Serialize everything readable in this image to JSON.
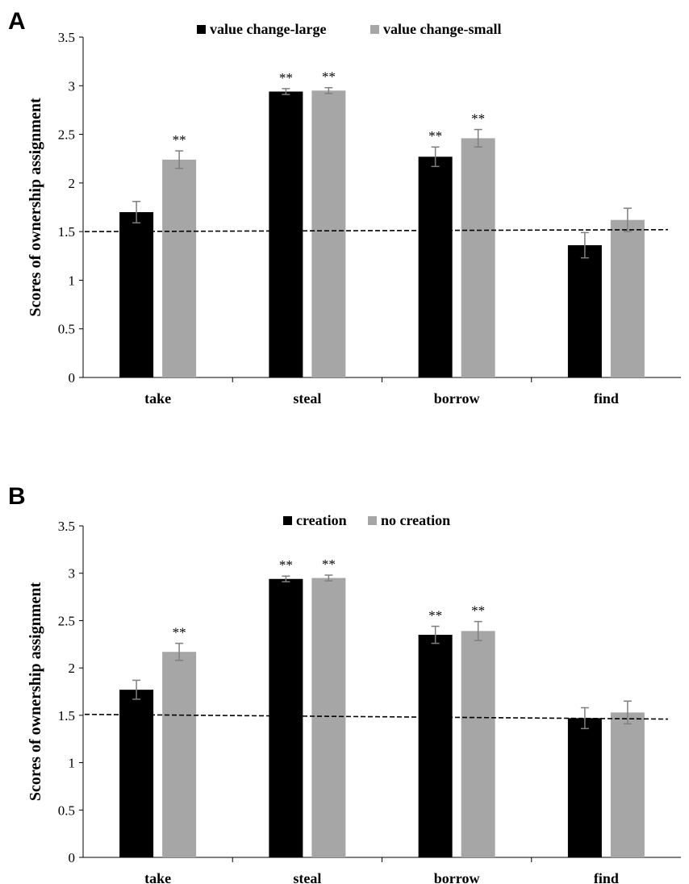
{
  "chart_data": [
    {
      "type": "bar",
      "panel": "A",
      "ylabel": "Scores of ownership assignment",
      "xlabel": "",
      "ylim": [
        0,
        3.5
      ],
      "yticks": [
        "0",
        "0.5",
        "1",
        "1.5",
        "2",
        "2.5",
        "3",
        "3.5"
      ],
      "categories": [
        "take",
        "steal",
        "borrow",
        "find"
      ],
      "legend_position": "top-center",
      "series": [
        {
          "name": "value change-large",
          "color": "#000000",
          "values": [
            1.7,
            2.94,
            2.27,
            1.36
          ],
          "errors": [
            0.11,
            0.03,
            0.1,
            0.13
          ],
          "significance": [
            "",
            "**",
            "**",
            ""
          ]
        },
        {
          "name": "value change-small",
          "color": "#a6a6a6",
          "values": [
            2.24,
            2.95,
            2.46,
            1.62
          ],
          "errors": [
            0.09,
            0.03,
            0.09,
            0.12
          ],
          "significance": [
            "**",
            "**",
            "**",
            ""
          ]
        }
      ],
      "reference_line": {
        "style": "dashed",
        "y_start": 1.5,
        "y_end": 1.52
      }
    },
    {
      "type": "bar",
      "panel": "B",
      "ylabel": "Scores of ownership assignment",
      "xlabel": "",
      "ylim": [
        0,
        3.5
      ],
      "yticks": [
        "0",
        "0.5",
        "1",
        "1.5",
        "2",
        "2.5",
        "3",
        "3.5"
      ],
      "categories": [
        "take",
        "steal",
        "borrow",
        "find"
      ],
      "legend_position": "top-center",
      "series": [
        {
          "name": "creation",
          "color": "#000000",
          "values": [
            1.77,
            2.94,
            2.35,
            1.47
          ],
          "errors": [
            0.1,
            0.03,
            0.09,
            0.11
          ],
          "significance": [
            "",
            "**",
            "**",
            ""
          ]
        },
        {
          "name": "no creation",
          "color": "#a6a6a6",
          "values": [
            2.17,
            2.95,
            2.39,
            1.53
          ],
          "errors": [
            0.09,
            0.03,
            0.1,
            0.12
          ],
          "significance": [
            "**",
            "**",
            "**",
            ""
          ]
        }
      ],
      "reference_line": {
        "style": "dashed",
        "y_start": 1.51,
        "y_end": 1.46
      }
    }
  ]
}
